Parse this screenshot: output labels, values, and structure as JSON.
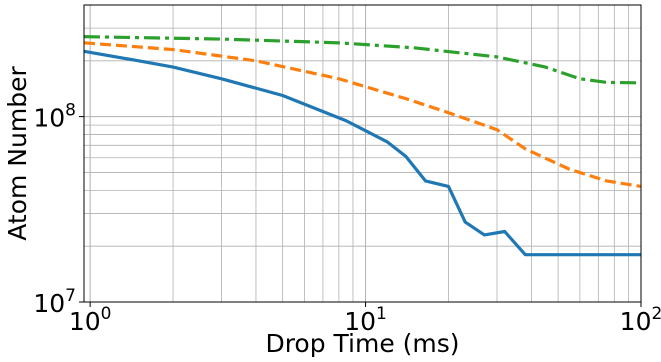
{
  "chart_data": {
    "type": "line",
    "title": "",
    "xlabel": "Drop Time (ms)",
    "ylabel": "Atom Number",
    "xscale": "log",
    "yscale": "log",
    "xlim": [
      0.95,
      100
    ],
    "ylim": [
      10000000,
      400000000
    ],
    "grid": "both, major and minor",
    "x_ticks": [
      {
        "value": 1,
        "base": "10",
        "exp": "0"
      },
      {
        "value": 10,
        "base": "10",
        "exp": "1"
      },
      {
        "value": 100,
        "base": "10",
        "exp": "2"
      }
    ],
    "y_ticks": [
      {
        "value": 10000000,
        "base": "10",
        "exp": "7"
      },
      {
        "value": 100000000,
        "base": "10",
        "exp": "8"
      }
    ],
    "series": [
      {
        "color": "#1f77b4",
        "style": "solid",
        "points": [
          [
            0.95,
            225000000
          ],
          [
            1.5,
            200000000
          ],
          [
            2.0,
            185000000
          ],
          [
            3.0,
            160000000
          ],
          [
            5.0,
            130000000
          ],
          [
            8.5,
            95000000
          ],
          [
            12.0,
            73000000
          ],
          [
            14.0,
            61000000
          ],
          [
            16.5,
            45000000
          ],
          [
            20.0,
            42000000
          ],
          [
            23.0,
            27000000
          ],
          [
            27.0,
            23000000
          ],
          [
            32.0,
            24000000
          ],
          [
            38.0,
            18000000
          ],
          [
            100.0,
            18000000
          ]
        ]
      },
      {
        "color": "#ff7f0e",
        "style": "dashed",
        "points": [
          [
            0.95,
            250000000
          ],
          [
            2.0,
            230000000
          ],
          [
            4.0,
            200000000
          ],
          [
            8.0,
            160000000
          ],
          [
            14.0,
            125000000
          ],
          [
            20.0,
            105000000
          ],
          [
            30.0,
            85000000
          ],
          [
            38.0,
            67000000
          ],
          [
            55.0,
            52000000
          ],
          [
            75.0,
            45000000
          ],
          [
            100.0,
            42000000
          ]
        ]
      },
      {
        "color": "#2ca02c",
        "style": "dashdot",
        "points": [
          [
            0.95,
            270000000
          ],
          [
            3.0,
            262000000
          ],
          [
            8.0,
            250000000
          ],
          [
            15.0,
            235000000
          ],
          [
            30.0,
            210000000
          ],
          [
            45.0,
            185000000
          ],
          [
            60.0,
            160000000
          ],
          [
            75.0,
            153000000
          ],
          [
            100.0,
            152000000
          ]
        ]
      }
    ]
  }
}
